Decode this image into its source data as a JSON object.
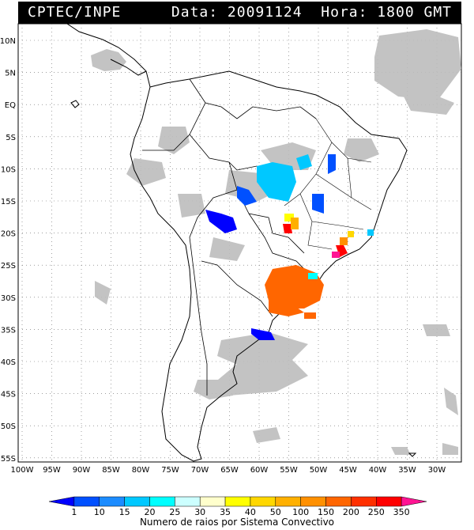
{
  "header": {
    "left": "CPTEC/INPE",
    "right": "Data: 20091124  Hora: 1800 GMT"
  },
  "map": {
    "lat_labels": [
      "10N",
      "5N",
      "EQ",
      "5S",
      "10S",
      "15S",
      "20S",
      "25S",
      "30S",
      "35S",
      "40S",
      "45S",
      "50S",
      "55S"
    ],
    "lon_labels": [
      "100W",
      "95W",
      "90W",
      "85W",
      "80W",
      "75W",
      "70W",
      "65W",
      "60W",
      "55W",
      "50W",
      "45W",
      "40W",
      "35W",
      "30W"
    ],
    "lat_range": [
      12,
      -56
    ],
    "lon_range": [
      -100,
      -28
    ],
    "grid": true
  },
  "legend": {
    "tick_labels": [
      "1",
      "10",
      "15",
      "20",
      "25",
      "30",
      "35",
      "40",
      "50",
      "100",
      "150",
      "200",
      "250",
      "350"
    ],
    "colors": [
      "#0000ff",
      "#0050ff",
      "#1c8cff",
      "#00c8ff",
      "#00ffff",
      "#ccffff",
      "#ffffcc",
      "#ffff00",
      "#ffd700",
      "#ffb000",
      "#ff9000",
      "#ff6600",
      "#ff3000",
      "#ff0000",
      "#ff1493"
    ],
    "caption": "Numero de raios por Sistema Convectivo"
  },
  "colors": {
    "clouds": "#b8b8b8",
    "coast": "#000000"
  }
}
